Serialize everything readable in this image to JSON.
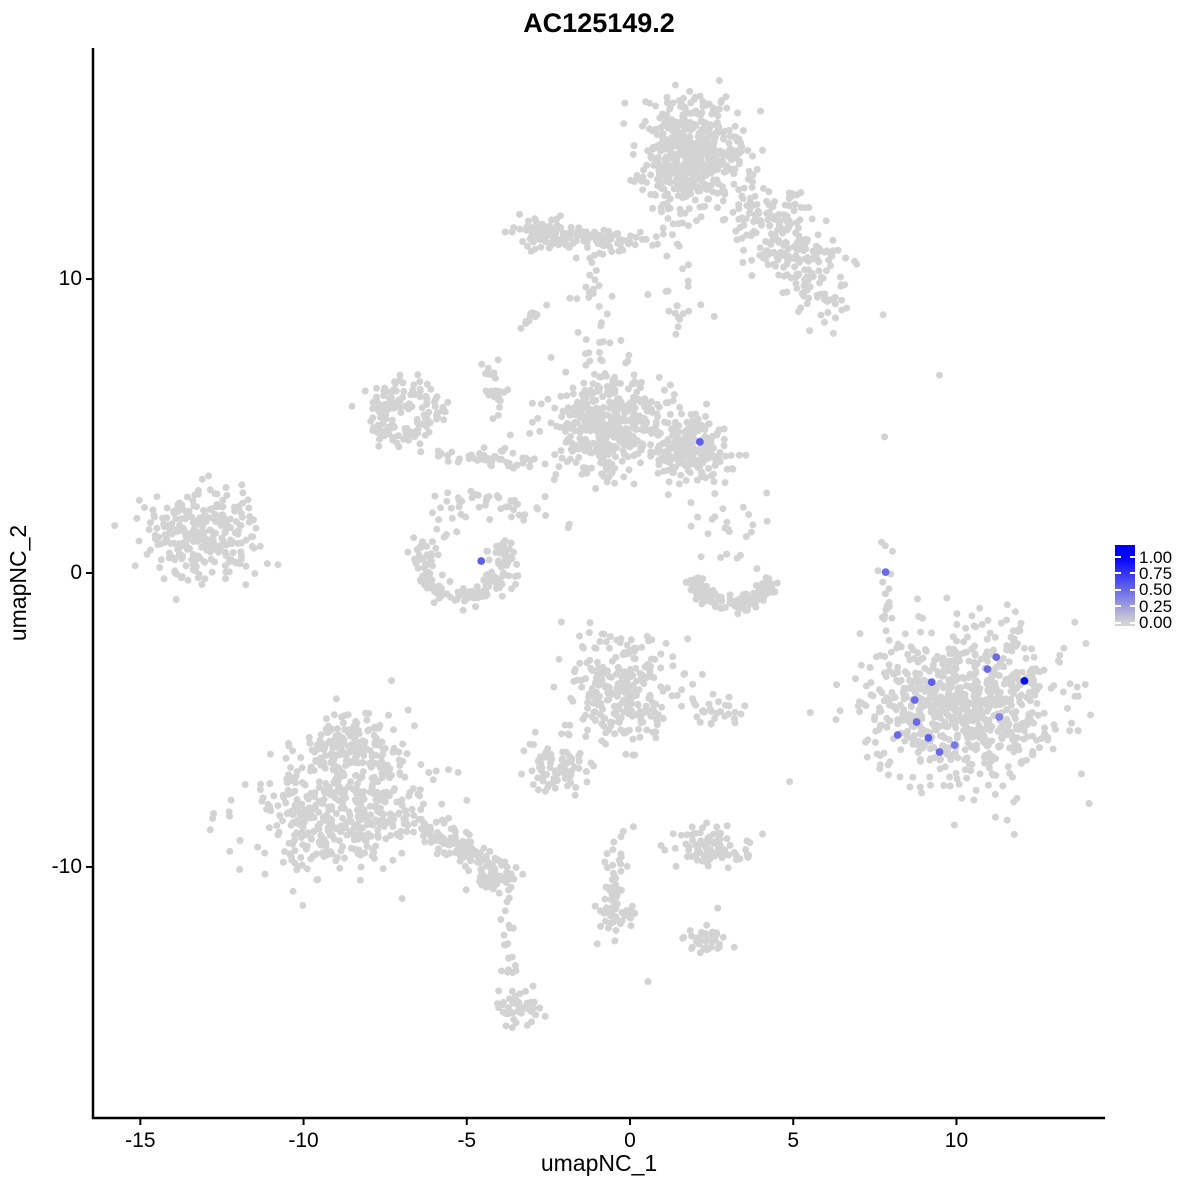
{
  "title": "AC125149.2",
  "axes": {
    "x": {
      "label": "umapNC_1",
      "ticks": [
        -15,
        -10,
        -5,
        0,
        5,
        10
      ],
      "range": [
        -16.45,
        14.55
      ]
    },
    "y": {
      "label": "umapNC_2",
      "ticks": [
        -10,
        0,
        10
      ],
      "range": [
        -18.54,
        17.86
      ]
    }
  },
  "legend": {
    "labels": [
      "1.00",
      "0.75",
      "0.50",
      "0.25",
      "0.00"
    ],
    "color_high": "#0000FF",
    "color_low": "#D3D3D3"
  },
  "chart_data": {
    "type": "scatter",
    "title": "AC125149.2",
    "xlabel": "umapNC_1",
    "ylabel": "umapNC_2",
    "xlim": [
      -16.45,
      14.55
    ],
    "ylim": [
      -18.54,
      17.86
    ],
    "background_point_color": "#D3D3D3",
    "point_radius": 3.5,
    "expressing_point_radius": 3.9,
    "clusters": [
      {
        "name": "top-main",
        "type": "gauss",
        "cx": 1.83,
        "cy": 14.3,
        "sx": 0.8,
        "sy": 0.85,
        "rot": 0,
        "n": 520
      },
      {
        "name": "top-arm",
        "type": "gauss",
        "cx": -1.5,
        "cy": 11.4,
        "sx": 1.05,
        "sy": 0.22,
        "rot": -4,
        "n": 110
      },
      {
        "name": "top-arm-knob",
        "type": "gauss",
        "cx": -2.7,
        "cy": 11.55,
        "sx": 0.38,
        "sy": 0.3,
        "rot": 0,
        "n": 60
      },
      {
        "name": "top-right",
        "type": "gauss",
        "cx": 4.89,
        "cy": 11.1,
        "sx": 1.35,
        "sy": 0.62,
        "rot": -54,
        "n": 260
      },
      {
        "name": "dash",
        "type": "gauss",
        "cx": -2.97,
        "cy": 8.74,
        "sx": 0.24,
        "sy": 0.1,
        "rot": 40,
        "n": 13
      },
      {
        "name": "below-top-strand",
        "type": "gauss",
        "cx": 1.3,
        "cy": 12.3,
        "sx": 0.3,
        "sy": 0.9,
        "rot": 0,
        "n": 25
      },
      {
        "name": "strand-a",
        "type": "gauss",
        "cx": -1.1,
        "cy": 9.6,
        "sx": 0.25,
        "sy": 0.9,
        "rot": 0,
        "n": 20
      },
      {
        "name": "strand-b",
        "type": "gauss",
        "cx": -1.0,
        "cy": 7.3,
        "sx": 0.35,
        "sy": 0.75,
        "rot": 0,
        "n": 18
      },
      {
        "name": "scatter-mid-top",
        "type": "gauss",
        "cx": 1.5,
        "cy": 9.0,
        "sx": 0.5,
        "sy": 0.6,
        "rot": 0,
        "n": 18
      },
      {
        "name": "ring",
        "type": "arc",
        "cx": -6.94,
        "cy": 5.48,
        "r": 0.85,
        "sr": 0.25,
        "a0": -30,
        "a1": 330,
        "n": 140
      },
      {
        "name": "ring-chain",
        "type": "gauss",
        "cx": -4.3,
        "cy": 3.9,
        "sx": 0.95,
        "sy": 0.16,
        "rot": -4,
        "n": 50
      },
      {
        "name": "ring-strand",
        "type": "gauss",
        "cx": -4.1,
        "cy": 6.0,
        "sx": 0.14,
        "sy": 0.8,
        "rot": 10,
        "n": 28
      },
      {
        "name": "mid-main",
        "type": "gauss",
        "cx": -0.65,
        "cy": 5.05,
        "sx": 0.85,
        "sy": 0.85,
        "rot": 0,
        "n": 430
      },
      {
        "name": "mid-knob",
        "type": "gauss",
        "cx": 1.9,
        "cy": 4.25,
        "sx": 0.58,
        "sy": 0.52,
        "rot": 0,
        "n": 210
      },
      {
        "name": "mid-chain-down",
        "type": "gauss",
        "cx": -3.6,
        "cy": 2.2,
        "sx": 0.9,
        "sy": 0.18,
        "rot": -25,
        "n": 26
      },
      {
        "name": "far-left",
        "type": "gauss",
        "cx": -13.2,
        "cy": 1.25,
        "sx": 0.85,
        "sy": 0.72,
        "rot": 0,
        "n": 260
      },
      {
        "name": "far-left-ne",
        "type": "gauss",
        "cx": -12.0,
        "cy": 2.3,
        "sx": 0.35,
        "sy": 0.4,
        "rot": 0,
        "n": 10
      },
      {
        "name": "crescent",
        "type": "arc",
        "cx": -5.1,
        "cy": 0.37,
        "r": 1.25,
        "sr": 0.2,
        "a0": 150,
        "a1": 390,
        "n": 150
      },
      {
        "name": "crescent-above",
        "type": "gauss",
        "cx": -5.2,
        "cy": 2.2,
        "sx": 0.75,
        "sy": 0.6,
        "rot": 0,
        "n": 22
      },
      {
        "name": "smile",
        "type": "arc",
        "cx": 3.15,
        "cy": 0.15,
        "r": 1.25,
        "sr": 0.18,
        "a0": 195,
        "a1": 345,
        "n": 140
      },
      {
        "name": "smile-above",
        "type": "gauss",
        "cx": 3.2,
        "cy": 1.3,
        "sx": 0.55,
        "sy": 0.9,
        "rot": 0,
        "n": 24
      },
      {
        "name": "strand-right",
        "type": "gauss",
        "cx": 7.83,
        "cy": -0.7,
        "sx": 0.12,
        "sy": 1.05,
        "rot": 0,
        "n": 22
      },
      {
        "name": "right-big",
        "type": "gauss",
        "cx": 10.2,
        "cy": -4.5,
        "sx": 1.45,
        "sy": 1.3,
        "rot": 0,
        "n": 780
      },
      {
        "name": "center-low",
        "type": "gauss",
        "cx": -0.25,
        "cy": -4.0,
        "sx": 0.8,
        "sy": 0.95,
        "rot": 0,
        "n": 270
      },
      {
        "name": "center-low-right",
        "type": "gauss",
        "cx": 2.75,
        "cy": -4.7,
        "sx": 0.45,
        "sy": 0.3,
        "rot": 0,
        "n": 28
      },
      {
        "name": "small-blob",
        "type": "gauss",
        "cx": -2.2,
        "cy": -6.7,
        "sx": 0.5,
        "sy": 0.45,
        "rot": 0,
        "n": 85
      },
      {
        "name": "bottomleft-top",
        "type": "gauss",
        "cx": -8.6,
        "cy": -5.9,
        "sx": 0.75,
        "sy": 0.65,
        "rot": 0,
        "n": 170
      },
      {
        "name": "bottomleft-bottom",
        "type": "gauss",
        "cx": -8.85,
        "cy": -8.2,
        "sx": 1.35,
        "sy": 1.0,
        "rot": 0,
        "n": 430
      },
      {
        "name": "bottomleft-arm",
        "type": "gauss",
        "cx": -5.35,
        "cy": -9.25,
        "sx": 1.0,
        "sy": 0.2,
        "rot": -33,
        "n": 120
      },
      {
        "name": "arm-end-blob",
        "type": "gauss",
        "cx": -4.2,
        "cy": -10.4,
        "sx": 0.38,
        "sy": 0.27,
        "rot": 0,
        "n": 55
      },
      {
        "name": "strand-down",
        "type": "gauss",
        "cx": -3.75,
        "cy": -12.7,
        "sx": 0.16,
        "sy": 1.1,
        "rot": 0,
        "n": 22
      },
      {
        "name": "bottom-blob",
        "type": "gauss",
        "cx": -3.35,
        "cy": -14.8,
        "sx": 0.34,
        "sy": 0.3,
        "rot": -30,
        "n": 42
      },
      {
        "name": "mid-bottom-strand",
        "type": "gauss",
        "cx": -0.45,
        "cy": -10.5,
        "sx": 0.15,
        "sy": 1.0,
        "rot": -8,
        "n": 50
      },
      {
        "name": "mid-bottom-blob",
        "type": "gauss",
        "cx": -0.3,
        "cy": -11.6,
        "sx": 0.3,
        "sy": 0.22,
        "rot": 0,
        "n": 25
      },
      {
        "name": "bottom-horiz-blob",
        "type": "gauss",
        "cx": 2.4,
        "cy": -9.3,
        "sx": 0.6,
        "sy": 0.32,
        "rot": 0,
        "n": 90
      },
      {
        "name": "arrow-blob",
        "type": "gauss",
        "cx": 2.2,
        "cy": -12.5,
        "sx": 0.4,
        "sy": 0.26,
        "rot": 0,
        "n": 38
      },
      {
        "name": "singles",
        "type": "singles",
        "pts": [
          [
            9.48,
            6.73
          ],
          [
            7.8,
            4.63
          ],
          [
            4.89,
            -7.1
          ],
          [
            0.55,
            -13.9
          ],
          [
            2.69,
            -11.4
          ],
          [
            2.35,
            -8.5
          ],
          [
            -2.6,
            2.6
          ],
          [
            -13.9,
            -0.9
          ]
        ]
      }
    ],
    "expressing_points": [
      {
        "x": 2.14,
        "y": 4.46,
        "value": 0.55
      },
      {
        "x": -4.56,
        "y": 0.41,
        "value": 0.55
      },
      {
        "x": 7.83,
        "y": 0.03,
        "value": 0.5
      },
      {
        "x": 11.22,
        "y": -2.86,
        "value": 0.5
      },
      {
        "x": 10.95,
        "y": -3.27,
        "value": 0.5
      },
      {
        "x": 12.08,
        "y": -3.67,
        "value": 0.95
      },
      {
        "x": 9.24,
        "y": -3.71,
        "value": 0.55
      },
      {
        "x": 8.72,
        "y": -4.32,
        "value": 0.5
      },
      {
        "x": 11.31,
        "y": -4.9,
        "value": 0.4
      },
      {
        "x": 8.78,
        "y": -5.07,
        "value": 0.5
      },
      {
        "x": 8.2,
        "y": -5.51,
        "value": 0.5
      },
      {
        "x": 9.14,
        "y": -5.61,
        "value": 0.55
      },
      {
        "x": 9.94,
        "y": -5.85,
        "value": 0.42
      },
      {
        "x": 9.48,
        "y": -6.09,
        "value": 0.5
      }
    ]
  }
}
